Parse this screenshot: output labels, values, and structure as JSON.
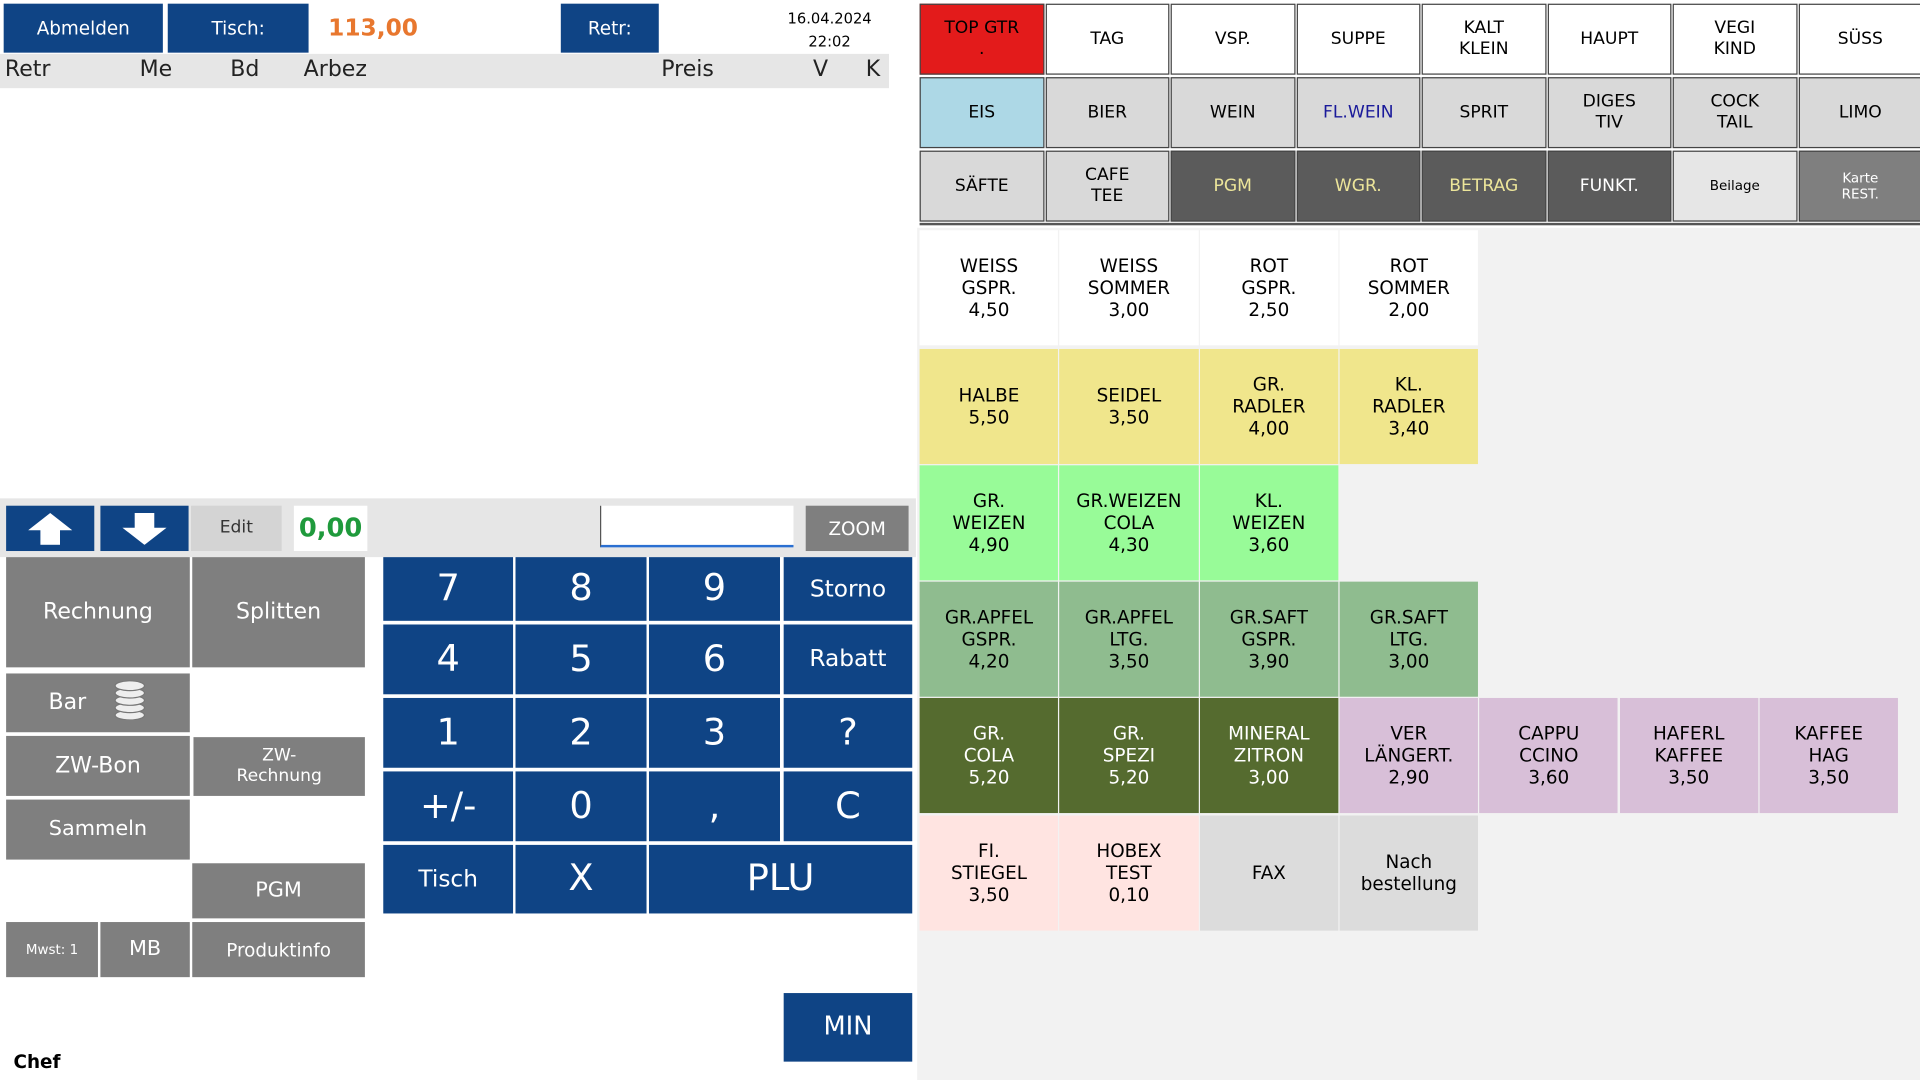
{
  "header": {
    "logout": "Abmelden",
    "table_label": "Tisch:",
    "total": "113,00",
    "retr": "Retr:",
    "date": "16.04.2024",
    "time": "22:02"
  },
  "columns": [
    "Retr",
    "Me",
    "Bd",
    "Arbez",
    "Preis",
    "V",
    "K"
  ],
  "categories": [
    [
      [
        "TOP GTR",
        "."
      ],
      [
        "TAG"
      ],
      [
        "VSP."
      ],
      [
        "SUPPE"
      ],
      [
        "KALT",
        "KLEIN"
      ],
      [
        "HAUPT"
      ],
      [
        "VEGI",
        "KIND"
      ],
      [
        "SÜSS"
      ]
    ],
    [
      [
        "EIS"
      ],
      [
        "BIER"
      ],
      [
        "WEIN"
      ],
      [
        "FL.WEIN"
      ],
      [
        "SPRIT"
      ],
      [
        "DIGES",
        "TIV"
      ],
      [
        "COCK",
        "TAIL"
      ],
      [
        "LIMO"
      ]
    ],
    [
      [
        "SÄFTE"
      ],
      [
        "CAFE",
        "TEE"
      ],
      [
        "PGM"
      ],
      [
        "WGR."
      ],
      [
        "BETRAG"
      ],
      [
        "FUNKT."
      ],
      [
        "Beilage"
      ],
      [
        "Karte",
        "REST."
      ]
    ]
  ],
  "toolbar": {
    "edit": "Edit",
    "amount": "0,00",
    "zoom": "ZOOM"
  },
  "actions": {
    "rechnung": "Rechnung",
    "splitten": "Splitten",
    "bar": "Bar",
    "zw_bon": "ZW-Bon",
    "zw_rechnung": [
      "ZW-",
      "Rechnung"
    ],
    "sammeln": "Sammeln",
    "pgm": "PGM",
    "mwst": "Mwst: 1",
    "mb": "MB",
    "produktinfo": "Produktinfo"
  },
  "keypad": [
    [
      "7",
      "8",
      "9",
      "Storno"
    ],
    [
      "4",
      "5",
      "6",
      "Rabatt"
    ],
    [
      "1",
      "2",
      "3",
      "?"
    ],
    [
      "+/-",
      "0",
      ",",
      "C"
    ],
    [
      "Tisch",
      "X",
      "PLU"
    ]
  ],
  "min": "MIN",
  "user": "Chef",
  "products": [
    [
      {
        "name": [
          "WEISS",
          "GSPR."
        ],
        "price": "4,50"
      },
      {
        "name": [
          "WEISS",
          "SOMMER"
        ],
        "price": "3,00"
      },
      {
        "name": [
          "ROT",
          "GSPR."
        ],
        "price": "2,50"
      },
      {
        "name": [
          "ROT",
          "SOMMER"
        ],
        "price": "2,00"
      }
    ],
    [
      {
        "name": [
          "HALBE"
        ],
        "price": "5,50"
      },
      {
        "name": [
          "SEIDEL"
        ],
        "price": "3,50"
      },
      {
        "name": [
          "GR.",
          "RADLER"
        ],
        "price": "4,00"
      },
      {
        "name": [
          "KL.",
          "RADLER"
        ],
        "price": "3,40"
      }
    ],
    [
      {
        "name": [
          "GR.",
          "WEIZEN"
        ],
        "price": "4,90"
      },
      {
        "name": [
          "GR.WEIZEN",
          "COLA"
        ],
        "price": "4,30"
      },
      {
        "name": [
          "KL.",
          "WEIZEN"
        ],
        "price": "3,60"
      }
    ],
    [
      {
        "name": [
          "GR.APFEL",
          "GSPR."
        ],
        "price": "4,20"
      },
      {
        "name": [
          "GR.APFEL",
          "LTG."
        ],
        "price": "3,50"
      },
      {
        "name": [
          "GR.SAFT",
          "GSPR."
        ],
        "price": "3,90"
      },
      {
        "name": [
          "GR.SAFT",
          "LTG."
        ],
        "price": "3,00"
      }
    ],
    [
      {
        "name": [
          "GR.",
          "COLA"
        ],
        "price": "5,20"
      },
      {
        "name": [
          "GR.",
          "SPEZI"
        ],
        "price": "5,20"
      },
      {
        "name": [
          "MINERAL",
          "ZITRON"
        ],
        "price": "3,00"
      },
      {
        "name": [
          "VER",
          "LÄNGERT."
        ],
        "price": "2,90"
      },
      {
        "name": [
          "CAPPU",
          "CCINO"
        ],
        "price": "3,60"
      },
      {
        "name": [
          "HAFERL",
          "KAFFEE"
        ],
        "price": "3,50"
      },
      {
        "name": [
          "KAFFEE",
          "HAG"
        ],
        "price": "3,50"
      }
    ],
    [
      {
        "name": [
          "FI.",
          "STIEGEL"
        ],
        "price": "3,50"
      },
      {
        "name": [
          "HOBEX",
          "TEST"
        ],
        "price": "0,10"
      },
      {
        "name": [
          "FAX"
        ]
      },
      {
        "name": [
          "Nach",
          "bestellung"
        ]
      }
    ]
  ]
}
